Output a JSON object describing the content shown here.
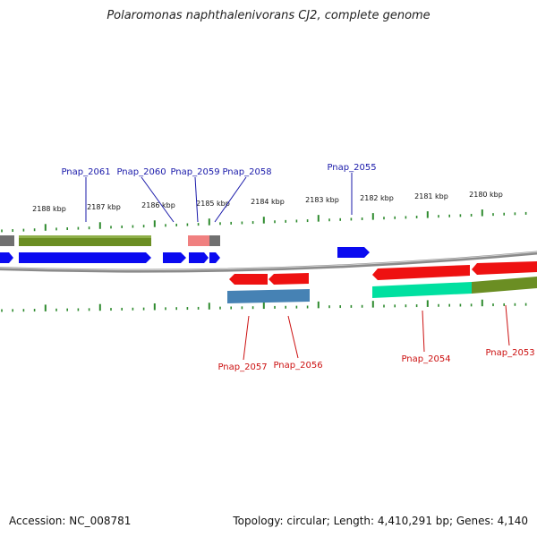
{
  "title": "Polaromonas naphthalenivorans CJ2, complete genome",
  "footer": {
    "accession": "Accession: NC_008781",
    "summary": "Topology: circular; Length: 4,410,291 bp; Genes: 4,140"
  },
  "colors": {
    "forward_label": "#1a1aaa",
    "reverse_label": "#cc1111",
    "tick": "#2e8b2e",
    "backbone": "#8a8a8a",
    "blue_gene": "#0a0af0",
    "red_gene": "#ee1111",
    "olive": "#6b8e23",
    "grey": "#707070",
    "pink": "#f08080",
    "steel": "#4682b4",
    "teal": "#00e0a0"
  },
  "scale": {
    "unit": "kbp",
    "labels": [
      "2188 kbp",
      "2187 kbp",
      "2186 kbp",
      "2185 kbp",
      "2184 kbp",
      "2183 kbp",
      "2182 kbp",
      "2181 kbp",
      "2180 kbp"
    ]
  },
  "genes_forward": [
    {
      "name": "Pnap_2061"
    },
    {
      "name": "Pnap_2060"
    },
    {
      "name": "Pnap_2059"
    },
    {
      "name": "Pnap_2058"
    },
    {
      "name": "Pnap_2055"
    }
  ],
  "genes_reverse": [
    {
      "name": "Pnap_2057"
    },
    {
      "name": "Pnap_2056"
    },
    {
      "name": "Pnap_2054"
    },
    {
      "name": "Pnap_2053"
    }
  ]
}
